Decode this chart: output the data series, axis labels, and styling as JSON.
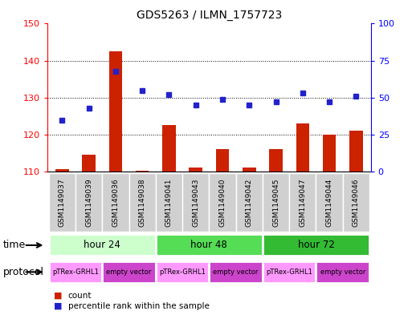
{
  "title": "GDS5263 / ILMN_1757723",
  "samples": [
    "GSM1149037",
    "GSM1149039",
    "GSM1149036",
    "GSM1149038",
    "GSM1149041",
    "GSM1149043",
    "GSM1149040",
    "GSM1149042",
    "GSM1149045",
    "GSM1149047",
    "GSM1149044",
    "GSM1149046"
  ],
  "bar_values": [
    110.7,
    114.5,
    142.5,
    110.3,
    122.5,
    111.2,
    116.0,
    111.2,
    116.0,
    123.0,
    120.0,
    121.0
  ],
  "percentile_values": [
    35,
    43,
    68,
    55,
    52,
    45,
    49,
    45,
    47,
    53,
    47,
    51
  ],
  "ylim_left": [
    110,
    150
  ],
  "ylim_right": [
    0,
    100
  ],
  "yticks_left": [
    110,
    120,
    130,
    140,
    150
  ],
  "yticks_right": [
    0,
    25,
    50,
    75,
    100
  ],
  "bar_color": "#cc2200",
  "blue_color": "#2222cc",
  "time_groups": [
    {
      "label": "hour 24",
      "start": 0,
      "end": 4
    },
    {
      "label": "hour 48",
      "start": 4,
      "end": 8
    },
    {
      "label": "hour 72",
      "start": 8,
      "end": 12
    }
  ],
  "time_colors": [
    "#ccffcc",
    "#55dd55",
    "#33bb33"
  ],
  "protocol_groups": [
    {
      "label": "pTRex-GRHL1",
      "start": 0,
      "end": 2
    },
    {
      "label": "empty vector",
      "start": 2,
      "end": 4
    },
    {
      "label": "pTRex-GRHL1",
      "start": 4,
      "end": 6
    },
    {
      "label": "empty vector",
      "start": 6,
      "end": 8
    },
    {
      "label": "pTRex-GRHL1",
      "start": 8,
      "end": 10
    },
    {
      "label": "empty vector",
      "start": 10,
      "end": 12
    }
  ],
  "prot_colors": {
    "pTRex-GRHL1": "#ff99ff",
    "empty vector": "#cc44cc"
  },
  "time_label": "time",
  "protocol_label": "protocol",
  "legend_count": "count",
  "legend_percentile": "percentile rank within the sample",
  "hlines": [
    120,
    130,
    140
  ]
}
